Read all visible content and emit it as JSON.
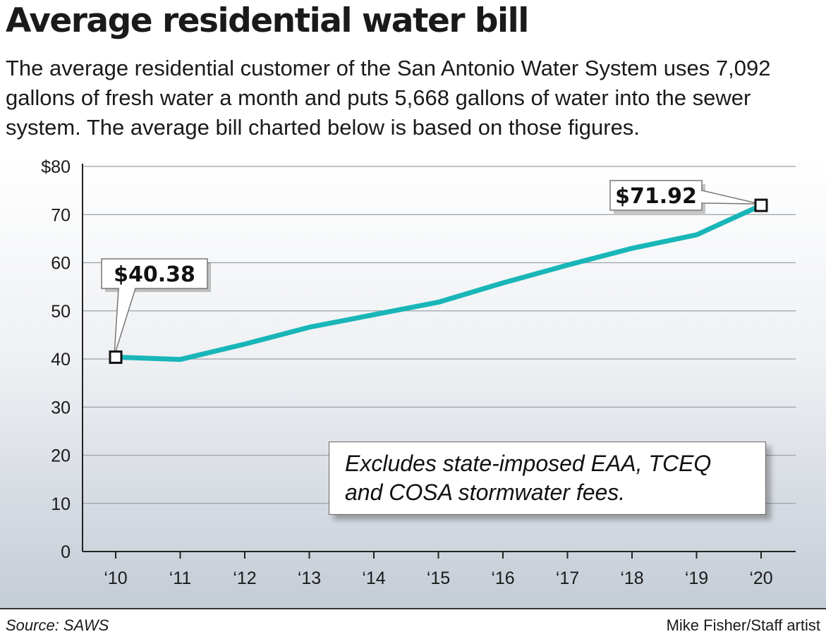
{
  "header": {
    "title": "Average residential water bill",
    "subtitle": "The average residential customer of the San Antonio Water System uses 7,092 gallons of fresh water a month and puts 5,668 gallons of water into the sewer system. The average bill charted below is based on those figures."
  },
  "chart_data": {
    "type": "line",
    "title": "Average residential water bill",
    "xlabel": "",
    "ylabel": "",
    "categories": [
      "‘10",
      "‘11",
      "‘12",
      "‘13",
      "‘14",
      "‘15",
      "‘16",
      "‘17",
      "‘18",
      "‘19",
      "‘20"
    ],
    "series": [
      {
        "values": [
          40.38,
          39.9,
          43.1,
          46.6,
          49.2,
          51.8,
          55.8,
          59.5,
          63.0,
          65.8,
          71.92
        ],
        "color": "#19b6b8"
      }
    ],
    "ylim": [
      0,
      80
    ],
    "yticks": [
      0,
      10,
      20,
      30,
      40,
      50,
      60,
      70,
      80
    ],
    "ytick_labels": [
      "0",
      "10",
      "20",
      "30",
      "40",
      "50",
      "60",
      "70",
      "$80"
    ],
    "grid": true,
    "annotations": [
      {
        "text": "$40.38",
        "category": "‘10",
        "value": 40.38
      },
      {
        "text": "$71.92",
        "category": "‘20",
        "value": 71.92
      }
    ],
    "note": "Excludes state-imposed EAA, TCEQ and COSA stormwater fees."
  },
  "footer": {
    "source": "Source: SAWS",
    "credit": "Mike Fisher/Staff artist"
  }
}
